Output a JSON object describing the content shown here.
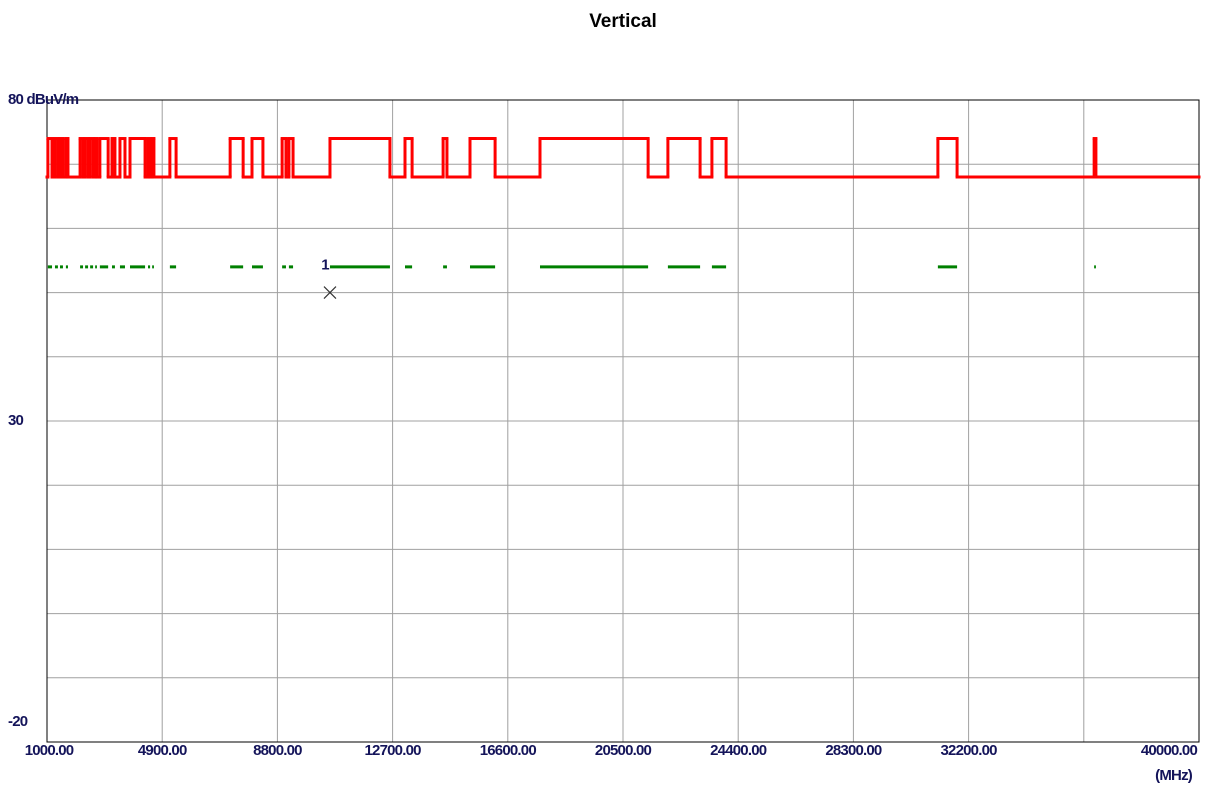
{
  "chart_data": {
    "type": "line",
    "title": "Vertical",
    "x_label": "(MHz)",
    "xlim": [
      1000,
      40000
    ],
    "ylim": [
      -20,
      80
    ],
    "xticks": [
      {
        "value": 1000,
        "label": "1000.00"
      },
      {
        "value": 4900,
        "label": "4900.00"
      },
      {
        "value": 8800,
        "label": "8800.00"
      },
      {
        "value": 12700,
        "label": "12700.00"
      },
      {
        "value": 16600,
        "label": "16600.00"
      },
      {
        "value": 20500,
        "label": "20500.00"
      },
      {
        "value": 24400,
        "label": "24400.00"
      },
      {
        "value": 28300,
        "label": "28300.00"
      },
      {
        "value": 32200,
        "label": "32200.00"
      },
      {
        "value": 40000,
        "label": "40000.00"
      }
    ],
    "xgrid": [
      4900,
      8800,
      12700,
      16600,
      20500,
      24400,
      28300,
      32200,
      36100
    ],
    "yticks": [
      {
        "value": 80,
        "label": "80 dBuV/m"
      },
      30,
      -20
    ],
    "ygrid": [
      70,
      60,
      50,
      40,
      30,
      20,
      10,
      0,
      -10
    ],
    "grid": true,
    "series": [
      {
        "color": "#ff0000",
        "step": "post",
        "x": [
          1000,
          1030,
          1170,
          1270,
          1370,
          1440,
          1540,
          1640,
          1710,
          2120,
          2220,
          2290,
          2390,
          2460,
          2560,
          2630,
          2690,
          2790,
          3070,
          3200,
          3300,
          3470,
          3640,
          3810,
          4320,
          4420,
          4490,
          4560,
          4620,
          5160,
          5370,
          7200,
          7640,
          7940,
          8310,
          8960,
          9090,
          9190,
          9330,
          10580,
          12610,
          13120,
          13360,
          14410,
          14540,
          15320,
          16170,
          17690,
          21350,
          22020,
          23110,
          23510,
          23990,
          31160,
          31810,
          36450,
          36510,
          40000
        ],
        "values": [
          68,
          74,
          68,
          74,
          68,
          74,
          68,
          74,
          68,
          74,
          68,
          74,
          68,
          74,
          68,
          74,
          68,
          74,
          68,
          74,
          68,
          74,
          68,
          74,
          68,
          74,
          68,
          74,
          68,
          74,
          68,
          74,
          68,
          74,
          68,
          74,
          68,
          74,
          68,
          74,
          68,
          74,
          68,
          74,
          68,
          74,
          68,
          74,
          68,
          74,
          68,
          74,
          68,
          74,
          68,
          74,
          68,
          68
        ]
      },
      {
        "color": "#008000",
        "x": [
          1030,
          1170,
          1170,
          1270,
          1370,
          1370,
          1440,
          1540,
          1540,
          1640,
          1710,
          1710,
          2120,
          2220,
          2220,
          2290,
          2390,
          2390,
          2460,
          2560,
          2560,
          2630,
          2690,
          2690,
          2790,
          3070,
          3070,
          3200,
          3300,
          3300,
          3470,
          3640,
          3640,
          3810,
          4320,
          4320,
          4420,
          4490,
          4490,
          4560,
          4620,
          4620,
          5160,
          5370,
          5370,
          7200,
          7640,
          7640,
          7940,
          8310,
          8310,
          8960,
          9090,
          9090,
          9190,
          9330,
          9330,
          10580,
          12610,
          12610,
          13120,
          13360,
          13360,
          14410,
          14540,
          14540,
          15320,
          16170,
          16170,
          17690,
          21350,
          21350,
          22020,
          23110,
          23110,
          23510,
          23990,
          23990,
          31160,
          31810,
          31810,
          36450,
          36510
        ],
        "values": [
          54,
          54,
          null,
          54,
          54,
          null,
          54,
          54,
          null,
          54,
          54,
          null,
          54,
          54,
          null,
          54,
          54,
          null,
          54,
          54,
          null,
          54,
          54,
          null,
          54,
          54,
          null,
          54,
          54,
          null,
          54,
          54,
          null,
          54,
          54,
          null,
          54,
          54,
          null,
          54,
          54,
          null,
          54,
          54,
          null,
          54,
          54,
          null,
          54,
          54,
          null,
          54,
          54,
          null,
          54,
          54,
          null,
          54,
          54,
          null,
          54,
          54,
          null,
          54,
          54,
          null,
          54,
          54,
          null,
          54,
          54,
          null,
          54,
          54,
          null,
          54,
          54,
          null,
          54,
          54,
          null,
          54,
          54
        ]
      }
    ],
    "markers": [
      {
        "label": "1",
        "x": 10580,
        "y": 50
      }
    ]
  }
}
